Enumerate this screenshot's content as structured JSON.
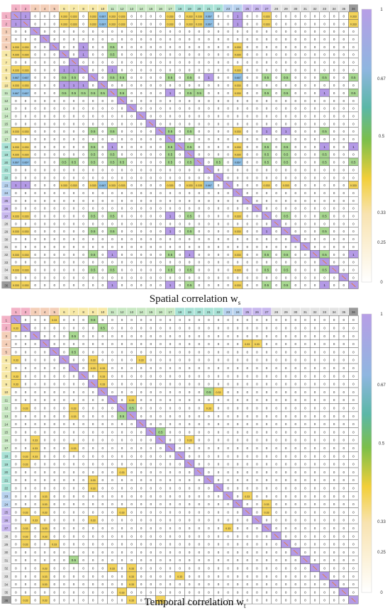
{
  "figure": {
    "captions": [
      {
        "text": "Spatial correlation w",
        "sub": "s"
      },
      {
        "text": "Temporal correlation w",
        "sub": "t"
      }
    ],
    "colorbar_ticks": [
      "1",
      "0.67",
      "0.5",
      "0.33",
      "0.25",
      "0"
    ]
  },
  "chart_data": [
    {
      "type": "heatmap",
      "size": 36,
      "caption": "Spatial correlation ws",
      "header_colors": [
        "#f3b2c6",
        "#f3b2c6",
        "#f4cfb8",
        "#f4cfb8",
        "#f4cfb8",
        "#f7e9a8",
        "#f7e9a8",
        "#f7e9a8",
        "#f7e9a8",
        "#f7e9a8",
        "#c9e8c3",
        "#c9e8c3",
        "#c9e8c3",
        "#c9e8c3",
        "#c9e8c3",
        "#c9e8c3",
        "#c9e8c3",
        "#a9e2d6",
        "#a9e2d6",
        "#a9e2d6",
        "#a9e2d6",
        "#a9e2d6",
        "#b8d2ee",
        "#b8d2ee",
        "#c8b8ee",
        "#c8b8ee",
        "#c8b8ee",
        "#e3e3e3",
        "#e3e3e3",
        "#e3e3e3",
        "#e3e3e3",
        "#e3e3e3",
        "#e3e3e3",
        "#e3e3e3",
        "#e3e3e3",
        "#9a9a9a"
      ],
      "nonzero": [
        [
          0,
          1,
          "1"
        ],
        [
          0,
          5,
          "0.333"
        ],
        [
          0,
          6,
          "0.333"
        ],
        [
          0,
          8,
          "0.333"
        ],
        [
          0,
          9,
          "0.667"
        ],
        [
          0,
          10,
          "0.333"
        ],
        [
          0,
          11,
          "0.333"
        ],
        [
          0,
          16,
          "0.333"
        ],
        [
          0,
          18,
          "0.333"
        ],
        [
          0,
          19,
          "0.333"
        ],
        [
          0,
          20,
          "0.667"
        ],
        [
          0,
          23,
          "1"
        ],
        [
          0,
          26,
          "0.333"
        ],
        [
          0,
          35,
          "0.333"
        ],
        [
          1,
          0,
          "1"
        ],
        [
          1,
          5,
          "0.333"
        ],
        [
          1,
          6,
          "0.333"
        ],
        [
          1,
          8,
          "0.333"
        ],
        [
          1,
          9,
          "0.667"
        ],
        [
          1,
          10,
          "0.333"
        ],
        [
          1,
          11,
          "0.333"
        ],
        [
          1,
          16,
          "0.333"
        ],
        [
          1,
          18,
          "0.333"
        ],
        [
          1,
          19,
          "0.333"
        ],
        [
          1,
          20,
          "0.667"
        ],
        [
          1,
          23,
          "1"
        ],
        [
          1,
          26,
          "0.333"
        ],
        [
          1,
          35,
          "0.333"
        ],
        [
          4,
          0,
          "0.333"
        ],
        [
          4,
          1,
          "0.333"
        ],
        [
          4,
          7,
          "1"
        ],
        [
          4,
          10,
          "0.5"
        ],
        [
          4,
          23,
          "0.333"
        ],
        [
          5,
          0,
          "0.333"
        ],
        [
          5,
          1,
          "0.333"
        ],
        [
          5,
          7,
          "1"
        ],
        [
          5,
          10,
          "0.5"
        ],
        [
          5,
          23,
          "0.333"
        ],
        [
          7,
          0,
          "0.333"
        ],
        [
          7,
          1,
          "0.333"
        ],
        [
          7,
          5,
          "1"
        ],
        [
          7,
          6,
          "1"
        ],
        [
          7,
          10,
          "1"
        ],
        [
          7,
          23,
          "0.333"
        ],
        [
          8,
          0,
          "0.667"
        ],
        [
          8,
          1,
          "0.667"
        ],
        [
          8,
          5,
          "0.5"
        ],
        [
          8,
          6,
          "0.5"
        ],
        [
          8,
          8,
          "0.5"
        ],
        [
          8,
          10,
          "0.5"
        ],
        [
          8,
          11,
          "0.5"
        ],
        [
          8,
          16,
          "0.5"
        ],
        [
          8,
          18,
          "0.5"
        ],
        [
          8,
          20,
          "1"
        ],
        [
          8,
          23,
          "0.667"
        ],
        [
          8,
          26,
          "0.5"
        ],
        [
          8,
          28,
          "0.5"
        ],
        [
          8,
          32,
          "0.5"
        ],
        [
          8,
          35,
          "0.5"
        ],
        [
          9,
          0,
          "0.333"
        ],
        [
          9,
          1,
          "0.333"
        ],
        [
          9,
          5,
          "1"
        ],
        [
          9,
          6,
          "1"
        ],
        [
          9,
          7,
          "1"
        ],
        [
          9,
          23,
          "0.333"
        ],
        [
          10,
          0,
          "0.667"
        ],
        [
          10,
          1,
          "0.667"
        ],
        [
          10,
          5,
          "0.5"
        ],
        [
          10,
          6,
          "0.5"
        ],
        [
          10,
          7,
          "0.5"
        ],
        [
          10,
          8,
          "0.5"
        ],
        [
          10,
          9,
          "0.5"
        ],
        [
          10,
          11,
          "0.5"
        ],
        [
          10,
          16,
          "1"
        ],
        [
          10,
          18,
          "0.5"
        ],
        [
          10,
          19,
          "0.5"
        ],
        [
          10,
          23,
          "0.333"
        ],
        [
          10,
          26,
          "0.5"
        ],
        [
          10,
          28,
          "0.5"
        ],
        [
          10,
          32,
          "1"
        ],
        [
          10,
          35,
          "0.5"
        ],
        [
          15,
          0,
          "0.333"
        ],
        [
          15,
          1,
          "0.333"
        ],
        [
          15,
          8,
          "0.5"
        ],
        [
          15,
          10,
          "0.5"
        ],
        [
          15,
          16,
          "0.5"
        ],
        [
          15,
          18,
          "0.5"
        ],
        [
          15,
          23,
          "0.333"
        ],
        [
          15,
          26,
          "1"
        ],
        [
          15,
          28,
          "1"
        ],
        [
          15,
          32,
          "0.5"
        ],
        [
          17,
          0,
          "0.333"
        ],
        [
          17,
          1,
          "0.333"
        ],
        [
          17,
          8,
          "0.5"
        ],
        [
          17,
          10,
          "1"
        ],
        [
          17,
          16,
          "0.5"
        ],
        [
          17,
          18,
          "0.5"
        ],
        [
          17,
          23,
          "0.333"
        ],
        [
          17,
          26,
          "0.5"
        ],
        [
          17,
          28,
          "0.5"
        ],
        [
          17,
          32,
          "1"
        ],
        [
          17,
          35,
          "1"
        ],
        [
          18,
          0,
          "0.333"
        ],
        [
          18,
          1,
          "0.333"
        ],
        [
          18,
          8,
          "0.5"
        ],
        [
          18,
          10,
          "0.5"
        ],
        [
          18,
          16,
          "0.5"
        ],
        [
          18,
          18,
          "0.5"
        ],
        [
          18,
          23,
          "0.333"
        ],
        [
          18,
          26,
          "0.5"
        ],
        [
          18,
          28,
          "0.5"
        ],
        [
          18,
          32,
          "0.5"
        ],
        [
          19,
          0,
          "0.667"
        ],
        [
          19,
          1,
          "0.667"
        ],
        [
          19,
          5,
          "0.5"
        ],
        [
          19,
          6,
          "0.5"
        ],
        [
          19,
          8,
          "0.5"
        ],
        [
          19,
          10,
          "0.5"
        ],
        [
          19,
          11,
          "0.5"
        ],
        [
          19,
          16,
          "0.5"
        ],
        [
          19,
          18,
          "0.5"
        ],
        [
          19,
          21,
          "0.5"
        ],
        [
          19,
          23,
          "0.667"
        ],
        [
          19,
          26,
          "0.5"
        ],
        [
          19,
          28,
          "0.5"
        ],
        [
          19,
          32,
          "0.5"
        ],
        [
          19,
          35,
          "0.5"
        ],
        [
          22,
          0,
          "1"
        ],
        [
          22,
          1,
          "1"
        ],
        [
          22,
          5,
          "0.333"
        ],
        [
          22,
          6,
          "0.333"
        ],
        [
          22,
          8,
          "0.333"
        ],
        [
          22,
          9,
          "0.667"
        ],
        [
          22,
          10,
          "0.333"
        ],
        [
          22,
          11,
          "0.333"
        ],
        [
          22,
          16,
          "0.333"
        ],
        [
          22,
          18,
          "0.333"
        ],
        [
          22,
          19,
          "0.333"
        ],
        [
          22,
          20,
          "0.667"
        ],
        [
          22,
          26,
          "0.333"
        ],
        [
          22,
          28,
          "0.333"
        ],
        [
          22,
          35,
          "0.333"
        ],
        [
          26,
          0,
          "0.333"
        ],
        [
          26,
          1,
          "0.333"
        ],
        [
          26,
          8,
          "0.5"
        ],
        [
          26,
          10,
          "0.5"
        ],
        [
          26,
          16,
          "1"
        ],
        [
          26,
          18,
          "0.5"
        ],
        [
          26,
          23,
          "0.333"
        ],
        [
          26,
          28,
          "0.5"
        ],
        [
          26,
          32,
          "0.5"
        ],
        [
          28,
          0,
          "0.333"
        ],
        [
          28,
          1,
          "0.333"
        ],
        [
          28,
          8,
          "0.5"
        ],
        [
          28,
          10,
          "0.5"
        ],
        [
          28,
          16,
          "1"
        ],
        [
          28,
          18,
          "0.5"
        ],
        [
          28,
          23,
          "0.333"
        ],
        [
          28,
          26,
          "1"
        ],
        [
          28,
          32,
          "0.5"
        ],
        [
          31,
          0,
          "0.333"
        ],
        [
          31,
          1,
          "0.333"
        ],
        [
          31,
          8,
          "0.5"
        ],
        [
          31,
          10,
          "1"
        ],
        [
          31,
          16,
          "0.5"
        ],
        [
          31,
          18,
          "1"
        ],
        [
          31,
          23,
          "0.333"
        ],
        [
          31,
          26,
          "0.5"
        ],
        [
          31,
          28,
          "0.5"
        ],
        [
          31,
          32,
          "0.5"
        ],
        [
          31,
          35,
          "1"
        ],
        [
          33,
          0,
          "0.333"
        ],
        [
          33,
          1,
          "0.333"
        ],
        [
          33,
          8,
          "0.5"
        ],
        [
          33,
          10,
          "0.5"
        ],
        [
          33,
          16,
          "0.5"
        ],
        [
          33,
          18,
          "0.5"
        ],
        [
          33,
          23,
          "0.333"
        ],
        [
          33,
          26,
          "0.5"
        ],
        [
          33,
          28,
          "0.5"
        ],
        [
          33,
          32,
          "0.5"
        ],
        [
          35,
          0,
          "0.333"
        ],
        [
          35,
          1,
          "0.333"
        ],
        [
          35,
          10,
          "1"
        ],
        [
          35,
          16,
          "1"
        ],
        [
          35,
          18,
          "0.5"
        ],
        [
          35,
          23,
          "0.333"
        ],
        [
          35,
          26,
          "0.5"
        ],
        [
          35,
          28,
          "0.5"
        ],
        [
          35,
          32,
          "1"
        ]
      ]
    },
    {
      "type": "heatmap",
      "size": 36,
      "caption": "Temporal correlation wt",
      "header_colors": [
        "#f3b2c6",
        "#f3b2c6",
        "#f4cfb8",
        "#f4cfb8",
        "#f4cfb8",
        "#f7e9a8",
        "#f7e9a8",
        "#f7e9a8",
        "#f7e9a8",
        "#f7e9a8",
        "#c9e8c3",
        "#c9e8c3",
        "#c9e8c3",
        "#c9e8c3",
        "#c9e8c3",
        "#c9e8c3",
        "#c9e8c3",
        "#a9e2d6",
        "#a9e2d6",
        "#a9e2d6",
        "#a9e2d6",
        "#a9e2d6",
        "#b8d2ee",
        "#b8d2ee",
        "#c8b8ee",
        "#c8b8ee",
        "#c8b8ee",
        "#e3e3e3",
        "#e3e3e3",
        "#e3e3e3",
        "#e3e3e3",
        "#e3e3e3",
        "#e3e3e3",
        "#e3e3e3",
        "#e3e3e3",
        "#9a9a9a"
      ],
      "nonzero": [
        [
          0,
          4,
          "0.33"
        ],
        [
          0,
          8,
          "0.5"
        ],
        [
          1,
          0,
          "0.33"
        ],
        [
          1,
          9,
          "0.5"
        ],
        [
          2,
          6,
          "0.5"
        ],
        [
          3,
          24,
          "0.33"
        ],
        [
          3,
          25,
          "0.33"
        ],
        [
          4,
          6,
          "0.5"
        ],
        [
          5,
          0,
          "0.33"
        ],
        [
          5,
          8,
          "0.33"
        ],
        [
          5,
          13,
          "0.33"
        ],
        [
          6,
          8,
          "0.33"
        ],
        [
          6,
          9,
          "0.33"
        ],
        [
          7,
          0,
          "0.33"
        ],
        [
          7,
          9,
          "0.33"
        ],
        [
          8,
          0,
          "0.33"
        ],
        [
          8,
          9,
          "0.33"
        ],
        [
          9,
          20,
          "0.5"
        ],
        [
          9,
          21,
          "0.33"
        ],
        [
          10,
          12,
          "0.33"
        ],
        [
          11,
          1,
          "0.33"
        ],
        [
          11,
          6,
          "0.33"
        ],
        [
          11,
          12,
          "0.5"
        ],
        [
          11,
          20,
          "0.33"
        ],
        [
          12,
          6,
          "0.33"
        ],
        [
          12,
          11,
          "0.5"
        ],
        [
          14,
          15,
          "0.5"
        ],
        [
          15,
          2,
          "0.33"
        ],
        [
          15,
          15,
          "0.5"
        ],
        [
          15,
          18,
          "0.33"
        ],
        [
          16,
          2,
          "0.33"
        ],
        [
          16,
          6,
          "0.33"
        ],
        [
          17,
          1,
          "0.33"
        ],
        [
          17,
          2,
          "0.33"
        ],
        [
          18,
          1,
          "0.33"
        ],
        [
          19,
          11,
          "0.33"
        ],
        [
          20,
          8,
          "0.33"
        ],
        [
          21,
          8,
          "0.33"
        ],
        [
          21,
          21,
          "0.33"
        ],
        [
          22,
          3,
          "0.33"
        ],
        [
          22,
          24,
          "0.33"
        ],
        [
          23,
          3,
          "0.33"
        ],
        [
          23,
          26,
          "0.33"
        ],
        [
          24,
          1,
          "0.33"
        ],
        [
          24,
          3,
          "0.33"
        ],
        [
          24,
          11,
          "0.33"
        ],
        [
          24,
          26,
          "0.33"
        ],
        [
          25,
          2,
          "0.33"
        ],
        [
          25,
          8,
          "0.33"
        ],
        [
          26,
          1,
          "0.33"
        ],
        [
          26,
          3,
          "0.33"
        ],
        [
          26,
          22,
          "0.33"
        ],
        [
          27,
          1,
          "0.33"
        ],
        [
          27,
          3,
          "0.33"
        ],
        [
          28,
          1,
          "0.33"
        ],
        [
          28,
          4,
          "0.33"
        ],
        [
          30,
          6,
          "0.5"
        ],
        [
          31,
          3,
          "0.33"
        ],
        [
          31,
          10,
          "0.33"
        ],
        [
          31,
          12,
          "0.33"
        ],
        [
          32,
          3,
          "0.33"
        ],
        [
          32,
          12,
          "0.33"
        ],
        [
          32,
          17,
          "0.33"
        ],
        [
          33,
          3,
          "0.33"
        ],
        [
          33,
          12,
          "0.33"
        ],
        [
          34,
          11,
          "0.33"
        ],
        [
          35,
          1,
          "0.33"
        ],
        [
          35,
          3,
          "0.33"
        ],
        [
          35,
          12,
          "0.33"
        ],
        [
          35,
          15,
          "0.33"
        ]
      ]
    }
  ]
}
